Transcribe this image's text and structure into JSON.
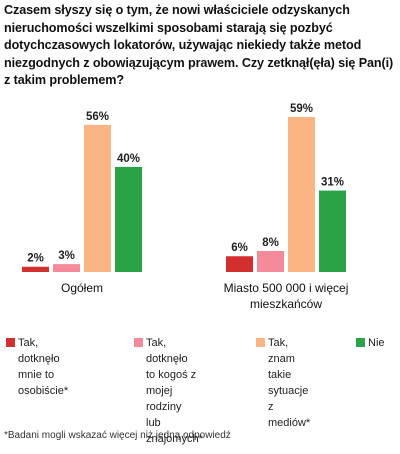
{
  "chart_data": {
    "type": "bar",
    "title": "Czasem słyszy się o tym, że nowi właściciele odzyskanych nieruchomości wszelkimi sposobami starają się pozbyć dotychczasowych lokatorów, używając niekiedy także metod niezgodnych z obowiązującym prawem. Czy zetknął(ęła) się Pan(i) z takim problemem?",
    "categories": [
      "Ogółem",
      "Miasto 500 000 i więcej\nmieszkańców"
    ],
    "series": [
      {
        "name": "Tak, dotknęło\nmnie to osobiście*",
        "color": "#d32f2f",
        "values": [
          2,
          6
        ]
      },
      {
        "name": "Tak, dotknęło\nto kogoś z mojej\nrodziny\nlub znajomych*",
        "color": "#f48a9a",
        "values": [
          3,
          8
        ]
      },
      {
        "name": "Tak, znam\ntakie sytuacje\nz mediów*",
        "color": "#fbb584",
        "values": [
          56,
          59
        ]
      },
      {
        "name": "Nie",
        "color": "#2aa347",
        "values": [
          40,
          31
        ]
      }
    ],
    "value_suffix": "%",
    "ylim": [
      0,
      59
    ],
    "grid": false,
    "legend_position": "bottom"
  },
  "footnote": "*Badani mogli wskazać więcej niż jedną odpowiedź"
}
